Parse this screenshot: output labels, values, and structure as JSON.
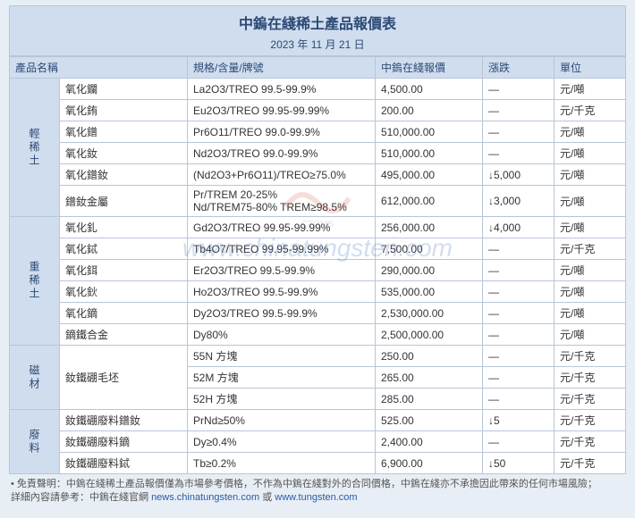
{
  "title": "中鎢在綫稀土產品報價表",
  "date": "2023 年 11 月 21 日",
  "columns": [
    "產品名稱",
    "規格/含量/牌號",
    "中鎢在綫報價",
    "漲跌",
    "單位"
  ],
  "categories": [
    {
      "label": "輕稀土",
      "rows": [
        {
          "name": "氧化鑭",
          "spec": "La2O3/TREO 99.5-99.9%",
          "price": "4,500.00",
          "change": "—",
          "unit": "元/噸"
        },
        {
          "name": "氧化銪",
          "spec": "Eu2O3/TREO 99.95-99.99%",
          "price": "200.00",
          "change": "—",
          "unit": "元/千克"
        },
        {
          "name": "氧化鐠",
          "spec": "Pr6O11/TREO 99.0-99.9%",
          "price": "510,000.00",
          "change": "—",
          "unit": "元/噸"
        },
        {
          "name": "氧化釹",
          "spec": "Nd2O3/TREO 99.0-99.9%",
          "price": "510,000.00",
          "change": "—",
          "unit": "元/噸"
        },
        {
          "name": "氧化鐠釹",
          "spec": "(Nd2O3+Pr6O11)/TREO≥75.0%",
          "price": "495,000.00",
          "change": "↓5,000",
          "unit": "元/噸"
        },
        {
          "name": "鐠釹金屬",
          "spec": "Pr/TREM 20-25%\nNd/TREM75-80% TREM≥98.5%",
          "price": "612,000.00",
          "change": "↓3,000",
          "unit": "元/噸"
        }
      ]
    },
    {
      "label": "重稀土",
      "rows": [
        {
          "name": "氧化釓",
          "spec": "Gd2O3/TREO 99.95-99.99%",
          "price": "256,000.00",
          "change": "↓4,000",
          "unit": "元/噸"
        },
        {
          "name": "氧化鋱",
          "spec": "Tb4O7/TREO 99.95-99.99%",
          "price": "7,500.00",
          "change": "—",
          "unit": "元/千克"
        },
        {
          "name": "氧化鉺",
          "spec": "Er2O3/TREO 99.5-99.9%",
          "price": "290,000.00",
          "change": "—",
          "unit": "元/噸"
        },
        {
          "name": "氧化鈥",
          "spec": "Ho2O3/TREO 99.5-99.9%",
          "price": "535,000.00",
          "change": "—",
          "unit": "元/噸"
        },
        {
          "name": "氧化鏑",
          "spec": "Dy2O3/TREO 99.5-99.9%",
          "price": "2,530,000.00",
          "change": "—",
          "unit": "元/噸"
        },
        {
          "name": "鏑鐵合金",
          "spec": "Dy80%",
          "price": "2,500,000.00",
          "change": "—",
          "unit": "元/噸"
        }
      ]
    },
    {
      "label": "磁材",
      "rows": [
        {
          "name": "釹鐵硼毛坯",
          "spec": "55N 方塊",
          "price": "250.00",
          "change": "—",
          "unit": "元/千克",
          "rowspan": 3
        },
        {
          "name": "",
          "spec": "52M 方塊",
          "price": "265.00",
          "change": "—",
          "unit": "元/千克"
        },
        {
          "name": "",
          "spec": "52H 方塊",
          "price": "285.00",
          "change": "—",
          "unit": "元/千克"
        }
      ]
    },
    {
      "label": "廢料",
      "rows": [
        {
          "name": "釹鐵硼廢料鐠釹",
          "spec": "PrNd≥50%",
          "price": "525.00",
          "change": "↓5",
          "unit": "元/千克"
        },
        {
          "name": "釹鐵硼廢料鏑",
          "spec": "Dy≥0.4%",
          "price": "2,400.00",
          "change": "—",
          "unit": "元/千克"
        },
        {
          "name": "釹鐵硼廢料鋱",
          "spec": "Tb≥0.2%",
          "price": "6,900.00",
          "change": "↓50",
          "unit": "元/千克"
        }
      ]
    }
  ],
  "footer_line1": "免責聲明：中鎢在綫稀土產品報價僅為市場參考價格，不作為中鎢在綫對外的合同價格，中鎢在綫亦不承擔因此帶來的任何市場風險；",
  "footer_line2_prefix": "詳細內容請參考：中鎢在綫官網 ",
  "footer_link1": "news.chinatungsten.com",
  "footer_or": " 或 ",
  "footer_link2": "www.tungsten.com",
  "watermark_text": "www.chinatungsten.com",
  "colors": {
    "header_bg": "#d0ddee",
    "border": "#b8c5d8",
    "text_header": "#2b4a75",
    "page_bg": "#e8eef5"
  }
}
